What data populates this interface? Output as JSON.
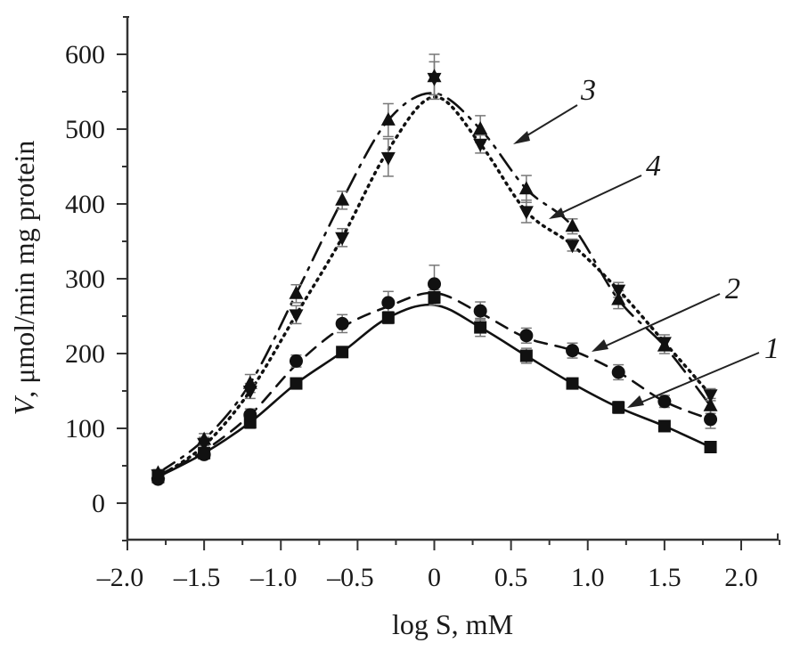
{
  "chart_data": {
    "type": "line",
    "title": "",
    "xlabel": "log S, mM",
    "ylabel_italic": "V",
    "ylabel_rest": ", μmol/min mg protein",
    "xlim": [
      -2.2,
      2.35
    ],
    "ylim": [
      -50,
      650
    ],
    "xticks": [
      -2.0,
      -1.5,
      -1.0,
      -0.5,
      0,
      0.5,
      1.0,
      1.5,
      2.0
    ],
    "xtick_labels": [
      "–2.0",
      "–1.5",
      "–1.0",
      "–0.5",
      "0",
      "0.5",
      "1.0",
      "1.5",
      "2.0"
    ],
    "yticks": [
      0,
      100,
      200,
      300,
      400,
      500,
      600
    ],
    "ytick_labels": [
      "0",
      "100",
      "200",
      "300",
      "400",
      "500",
      "600"
    ],
    "grid": false,
    "legend": "none",
    "x": [
      -1.8,
      -1.5,
      -1.2,
      -0.9,
      -0.6,
      -0.3,
      0,
      0.3,
      0.6,
      0.9,
      1.2,
      1.5,
      1.8
    ],
    "series": [
      {
        "name": "1",
        "marker": "square",
        "line": "solid",
        "values": [
          35,
          67,
          108,
          160,
          202,
          248,
          275,
          235,
          197,
          160,
          128,
          103,
          75
        ],
        "errors": [
          5,
          6,
          8,
          6,
          7,
          8,
          10,
          12,
          10,
          6,
          8,
          5,
          5
        ]
      },
      {
        "name": "2",
        "marker": "circle",
        "line": "dashed",
        "values": [
          32,
          65,
          118,
          190,
          240,
          268,
          293,
          257,
          224,
          204,
          175,
          136,
          112
        ],
        "errors": [
          5,
          6,
          8,
          8,
          12,
          15,
          25,
          12,
          10,
          10,
          10,
          8,
          12
        ]
      },
      {
        "name": "3",
        "marker": "triangle-up",
        "line": "dash-dot",
        "values": [
          40,
          85,
          160,
          280,
          405,
          512,
          570,
          500,
          420,
          370,
          272,
          210,
          130
        ],
        "errors": [
          5,
          8,
          12,
          12,
          12,
          22,
          30,
          18,
          18,
          10,
          12,
          10,
          10
        ]
      },
      {
        "name": "4",
        "marker": "triangle-down",
        "line": "dotted",
        "values": [
          38,
          80,
          150,
          252,
          355,
          462,
          568,
          480,
          390,
          345,
          285,
          215,
          145
        ],
        "errors": [
          5,
          8,
          10,
          12,
          12,
          25,
          22,
          12,
          15,
          8,
          10,
          10,
          8
        ]
      }
    ],
    "annotations": [
      {
        "text": "1",
        "target_series": "1"
      },
      {
        "text": "2",
        "target_series": "2"
      },
      {
        "text": "3",
        "target_series": "3"
      },
      {
        "text": "4",
        "target_series": "4"
      }
    ]
  }
}
